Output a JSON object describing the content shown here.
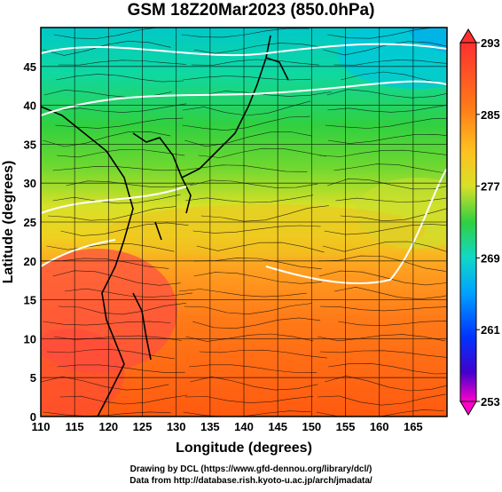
{
  "title": "GSM 18Z20Mar2023 (850.0hPa)",
  "map": {
    "x_label": "Longitude (degrees)",
    "y_label": "Latitude  (degrees)",
    "lon_range": [
      110,
      170
    ],
    "lat_range": [
      0,
      50
    ],
    "lon_ticks": [
      "110",
      "115",
      "120",
      "125",
      "130",
      "135",
      "140",
      "145",
      "150",
      "155",
      "160",
      "165"
    ],
    "lat_ticks": [
      "0",
      "5",
      "10",
      "15",
      "20",
      "25",
      "30",
      "35",
      "40",
      "45"
    ],
    "grid": true,
    "field": "temperature (K) with wind streamlines"
  },
  "colorbar": {
    "min": 253,
    "max": 293,
    "labels": [
      "293",
      "285",
      "277",
      "269",
      "261",
      "253"
    ],
    "colors": [
      "#ff00cc",
      "#4400cc",
      "#0033ff",
      "#00aaff",
      "#00e0d0",
      "#20d060",
      "#40d040",
      "#90e030",
      "#e8e820",
      "#ffb020",
      "#ff7018",
      "#ff5040",
      "#ff3030"
    ]
  },
  "credits": {
    "line1": "Drawing by DCL (https://www.gfd-dennou.org/library/dcl/)",
    "line2": "Data from http://database.rish.kyoto-u.ac.jp/arch/jmadata/"
  }
}
